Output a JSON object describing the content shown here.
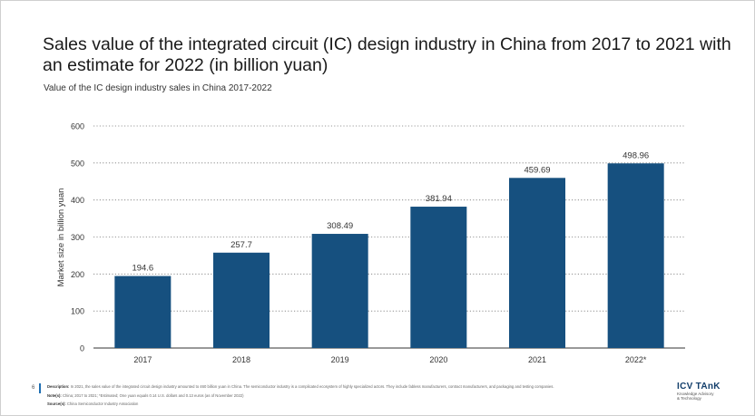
{
  "title": "Sales value of the integrated circuit (IC) design industry in China from 2017 to 2021 with an estimate for 2022 (in billion yuan)",
  "subtitle": "Value of the IC design industry sales in China 2017-2022",
  "chart_data": {
    "type": "bar",
    "categories": [
      "2017",
      "2018",
      "2019",
      "2020",
      "2021",
      "2022*"
    ],
    "values": [
      194.6,
      257.7,
      308.49,
      381.94,
      459.69,
      498.96
    ],
    "value_labels": [
      "194.6",
      "257.7",
      "308.49",
      "381.94",
      "459.69",
      "498.96"
    ],
    "ylabel": "Market size in billion yuan",
    "xlabel": "",
    "ylim": [
      0,
      600
    ],
    "yticks": [
      "0",
      "100",
      "200",
      "300",
      "400",
      "500",
      "600"
    ],
    "grid": true,
    "bar_color": "#16507f"
  },
  "footer": {
    "page_number": "6",
    "description_label": "Description:",
    "description_text": "In 2021, the sales value of the integrated circuit design industry amounted to 460 billion yuan in China. The semiconductor industry is a complicated ecosystem of highly specialized actors. They include fabless manufacturers, contract manufacturers, and packaging and testing companies.",
    "notes_label": "Note(s):",
    "notes_text": "China; 2017 to 2021; *Estimated; One yuan equals 0.14 U.S. dollars and 0.13 euros (as of November 2022)",
    "source_label": "Source(s):",
    "source_text": "China Semiconductor Industry Association"
  },
  "logo": {
    "name": "ICV TAnK",
    "line1": "Knowledge Advisory",
    "line2": "& Technology"
  }
}
